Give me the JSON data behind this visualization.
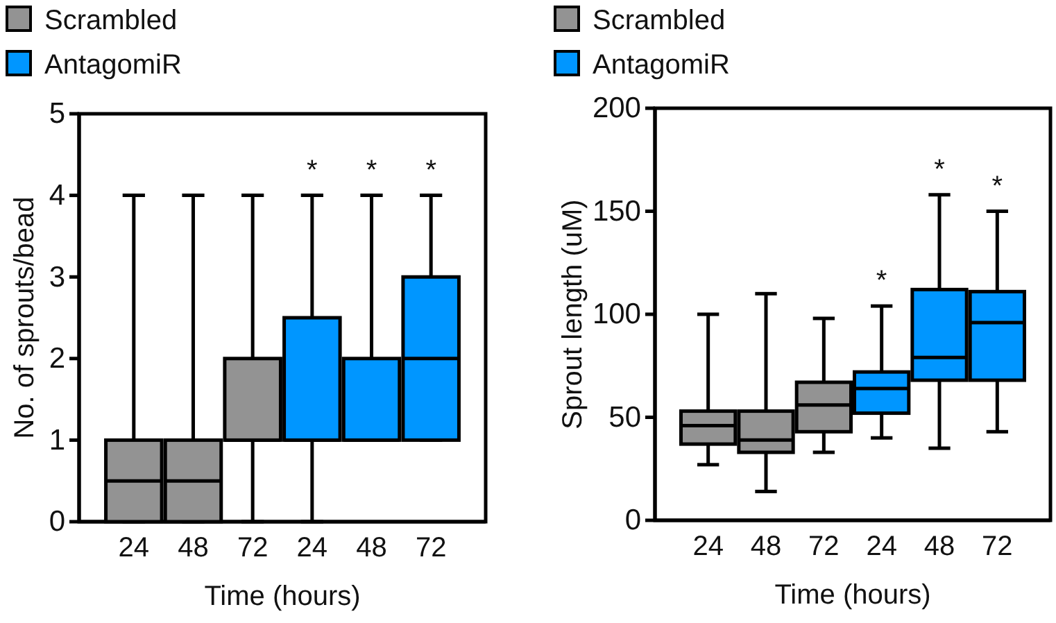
{
  "chart_data": [
    {
      "type": "box",
      "categories": [
        "24",
        "48",
        "72",
        "24",
        "48",
        "72"
      ],
      "xlabel": "Time (hours)",
      "ylabel": "No. of sprouts/bead",
      "ylim": [
        0,
        5
      ],
      "yticks": [
        0,
        1,
        2,
        3,
        4,
        5
      ],
      "legend": "top left",
      "series": [
        {
          "name": "Scrambled",
          "color": "#939393",
          "boxes": [
            {
              "low": 0,
              "q1": 0,
              "median": 0.5,
              "q3": 1,
              "high": 4
            },
            {
              "low": 0,
              "q1": 0,
              "median": 0.5,
              "q3": 1,
              "high": 4
            },
            {
              "low": 0,
              "q1": 1,
              "median": 1,
              "q3": 2,
              "high": 4
            },
            null,
            null,
            null
          ]
        },
        {
          "name": "AntagomiR",
          "color": "#0096ff",
          "boxes": [
            null,
            null,
            null,
            {
              "low": 0,
              "q1": 1,
              "median": 1,
              "q3": 2.5,
              "high": 4
            },
            {
              "low": 1,
              "q1": 1,
              "median": 1,
              "q3": 2,
              "high": 4
            },
            {
              "low": 1,
              "q1": 1,
              "median": 2,
              "q3": 3,
              "high": 4
            }
          ]
        }
      ],
      "annotations": [
        "*",
        "*",
        "*"
      ]
    },
    {
      "type": "box",
      "categories": [
        "24",
        "48",
        "72",
        "24",
        "48",
        "72"
      ],
      "xlabel": "Time (hours)",
      "ylabel": "Sprout length (uM)",
      "ylim": [
        0,
        200
      ],
      "yticks": [
        0,
        50,
        100,
        150,
        200
      ],
      "legend": "top left",
      "series": [
        {
          "name": "Scrambled",
          "color": "#939393",
          "boxes": [
            {
              "low": 27,
              "q1": 37,
              "median": 46,
              "q3": 53,
              "high": 100
            },
            {
              "low": 14,
              "q1": 33,
              "median": 39,
              "q3": 53,
              "high": 110
            },
            {
              "low": 33,
              "q1": 43,
              "median": 56,
              "q3": 67,
              "high": 98
            },
            null,
            null,
            null
          ]
        },
        {
          "name": "AntagomiR",
          "color": "#0096ff",
          "boxes": [
            null,
            null,
            null,
            {
              "low": 40,
              "q1": 52,
              "median": 64,
              "q3": 72,
              "high": 104
            },
            {
              "low": 35,
              "q1": 68,
              "median": 79,
              "q3": 112,
              "high": 158
            },
            {
              "low": 43,
              "q1": 68,
              "median": 96,
              "q3": 111,
              "high": 150
            }
          ]
        }
      ],
      "annotations": [
        "*",
        "*",
        "*"
      ]
    }
  ]
}
